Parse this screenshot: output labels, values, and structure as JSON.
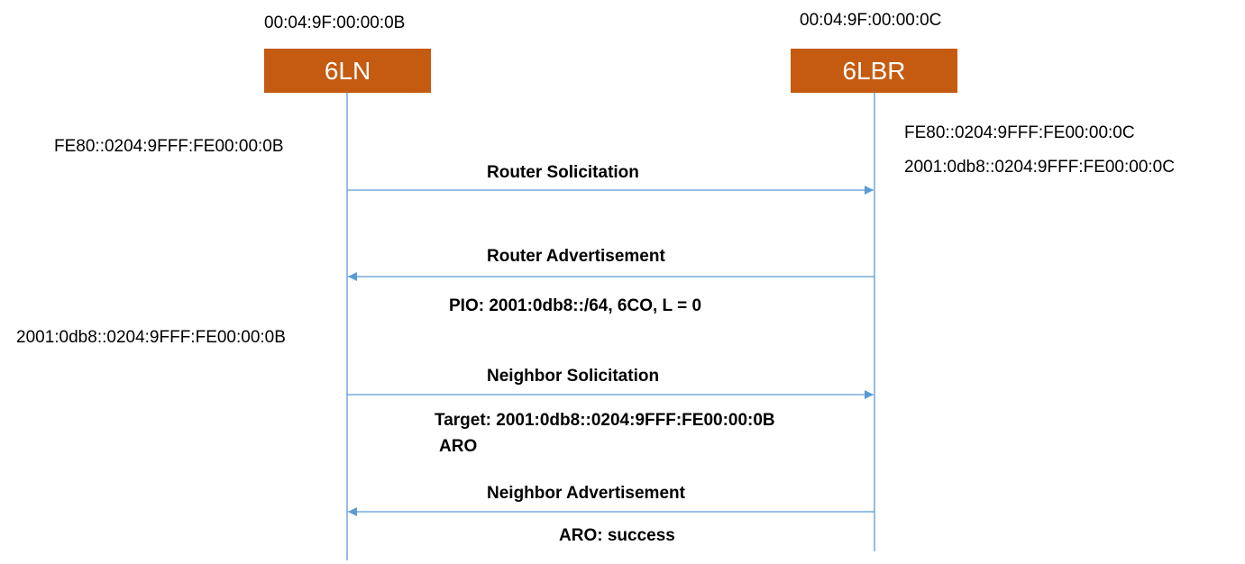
{
  "nodes": {
    "left": {
      "name": "6LN",
      "mac": "00:04:9F:00:00:0B"
    },
    "right": {
      "name": "6LBR",
      "mac": "00:04:9F:00:00:0C"
    }
  },
  "addresses": {
    "left_link_local": "FE80::0204:9FFF:FE00:00:0B",
    "right_link_local": "FE80::0204:9FFF:FE00:00:0C",
    "right_global": "2001:0db8::0204:9FFF:FE00:00:0C",
    "left_global": "2001:0db8::0204:9FFF:FE00:00:0B"
  },
  "messages": [
    {
      "label": "Router Solicitation",
      "direction": "left-to-right"
    },
    {
      "label": "Router Advertisement",
      "direction": "right-to-left",
      "details": [
        "PIO: 2001:0db8::/64, 6CO, L = 0"
      ]
    },
    {
      "label": "Neighbor Solicitation",
      "direction": "left-to-right",
      "details": [
        "Target: 2001:0db8::0204:9FFF:FE00:00:0B",
        "ARO"
      ]
    },
    {
      "label": "Neighbor Advertisement",
      "direction": "right-to-left",
      "details": [
        "ARO: success"
      ]
    }
  ],
  "colors": {
    "node_fill": "#c55a11",
    "line": "#5b9bd5"
  }
}
